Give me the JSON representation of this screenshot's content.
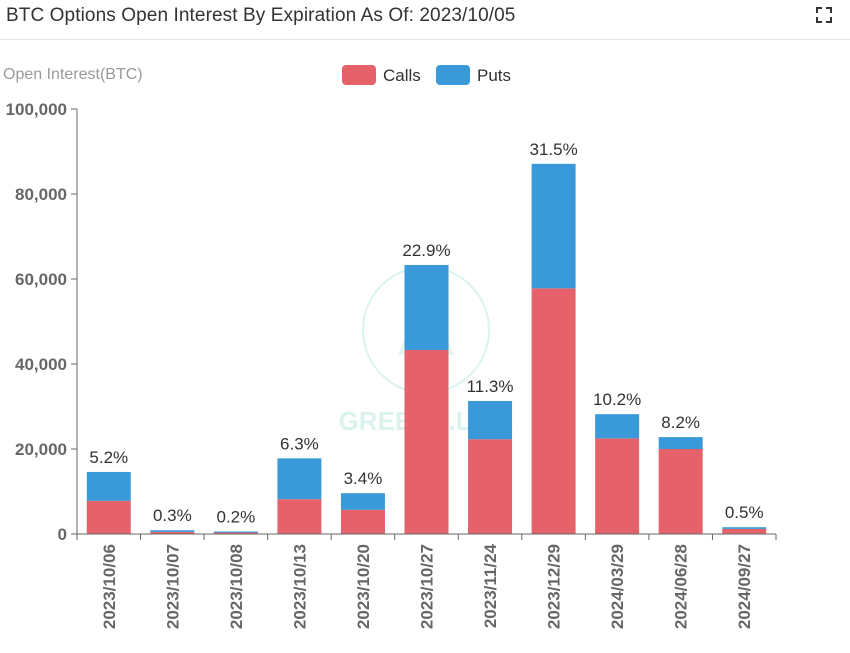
{
  "header": {
    "title": "BTC Options Open Interest By Expiration As Of: 2023/10/05"
  },
  "watermark_text": "GREEKS.LIVE",
  "chart_data": {
    "type": "bar",
    "stacked": true,
    "ylabel": "Open Interest(BTC)",
    "ylim": [
      0,
      100000
    ],
    "y_ticks": [
      "0",
      "20,000",
      "40,000",
      "60,000",
      "80,000",
      "100,000"
    ],
    "y_tick_values": [
      0,
      20000,
      40000,
      60000,
      80000,
      100000
    ],
    "grid": false,
    "legend_position": "top-center",
    "categories": [
      "2023/10/06",
      "2023/10/07",
      "2023/10/08",
      "2023/10/13",
      "2023/10/20",
      "2023/10/27",
      "2023/11/24",
      "2023/12/29",
      "2024/03/29",
      "2024/06/28",
      "2024/09/27"
    ],
    "series": [
      {
        "name": "Calls",
        "color": "#e5626a",
        "values": [
          7800,
          500,
          350,
          8200,
          5700,
          43300,
          22300,
          57800,
          22500,
          20000,
          1200
        ]
      },
      {
        "name": "Puts",
        "color": "#3a9ad9",
        "values": [
          6800,
          400,
          250,
          9600,
          3900,
          20000,
          9000,
          29300,
          5700,
          2800,
          400
        ]
      }
    ],
    "bar_labels": [
      "5.2%",
      "0.3%",
      "0.2%",
      "6.3%",
      "3.4%",
      "22.9%",
      "11.3%",
      "31.5%",
      "10.2%",
      "8.2%",
      "0.5%"
    ]
  }
}
